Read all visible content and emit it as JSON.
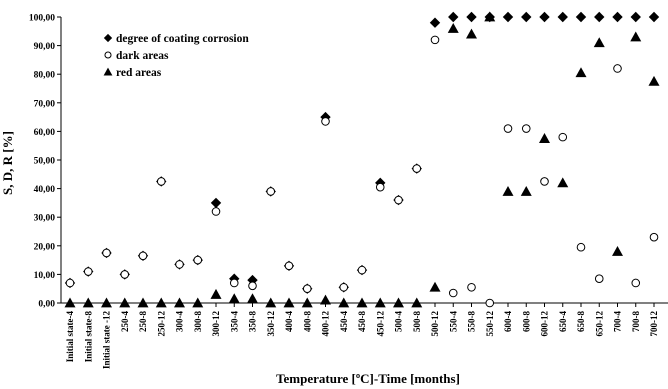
{
  "chart_data": {
    "type": "scatter",
    "title": "",
    "xlabel": "Temperature [ºC]-Time [months]",
    "ylabel": "S, D, R [%]",
    "ylim": [
      0,
      100
    ],
    "yticks": [
      "0,00",
      "10,00",
      "20,00",
      "30,00",
      "40,00",
      "50,00",
      "60,00",
      "70,00",
      "80,00",
      "90,00",
      "100,00"
    ],
    "grid": false,
    "legend_position": "top-left",
    "categories": [
      "Initial state-4",
      "Initial state-8",
      "Initial state -12",
      "250-4",
      "250-8",
      "250-12",
      "300-4",
      "300-8",
      "300-12",
      "350-4",
      "350-8",
      "350-12",
      "400-4",
      "400-8",
      "400-12",
      "450-4",
      "450-8",
      "450-12",
      "500-4",
      "500-8",
      "500-12",
      "550-4",
      "550-8",
      "550-12",
      "600-4",
      "600-8",
      "600-12",
      "650-4",
      "650-8",
      "650-12",
      "700-4",
      "700-8",
      "700-12"
    ],
    "series": [
      {
        "name": "degree of coating corrosion",
        "marker": "diamond",
        "values": [
          7,
          11,
          17.5,
          10,
          16.5,
          42.5,
          13.5,
          15,
          35,
          8.5,
          8,
          39,
          13,
          5,
          65,
          5.5,
          11.5,
          42,
          36,
          47,
          98,
          100,
          100,
          100,
          100,
          100,
          100,
          100,
          100,
          100,
          100,
          100,
          100
        ]
      },
      {
        "name": "dark areas",
        "marker": "circle",
        "values": [
          7,
          11,
          17.5,
          10,
          16.5,
          42.5,
          13.5,
          15,
          32,
          7,
          6,
          39,
          13,
          5,
          63.5,
          5.5,
          11.5,
          40.5,
          36,
          47,
          92,
          3.5,
          5.5,
          0,
          61,
          61,
          42.5,
          58,
          19.5,
          8.5,
          82,
          7,
          23
        ]
      },
      {
        "name": "red areas",
        "marker": "triangle",
        "values": [
          0,
          0,
          0,
          0,
          0,
          0,
          0,
          0,
          3,
          1.5,
          1.5,
          0,
          0,
          0,
          1,
          0,
          0,
          0,
          0,
          0,
          5.5,
          96,
          94,
          100,
          39,
          39,
          57.5,
          42,
          80.5,
          91,
          18,
          93,
          77.5
        ]
      }
    ]
  }
}
